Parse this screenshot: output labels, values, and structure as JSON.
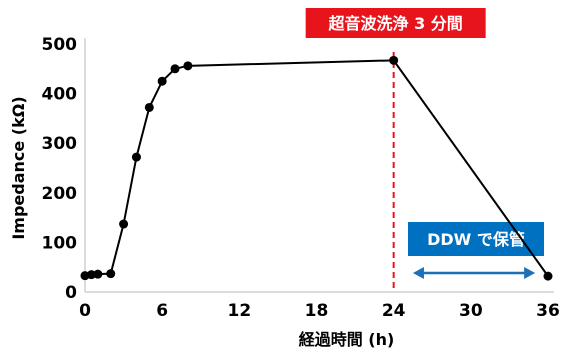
{
  "chart_data": {
    "type": "line",
    "title": "",
    "xlabel": "経過時間 (h)",
    "ylabel": "Impedance (kΩ)",
    "xlim": [
      0,
      36
    ],
    "ylim": [
      0,
      500
    ],
    "x_ticks": [
      0,
      6,
      12,
      18,
      24,
      30,
      36
    ],
    "y_ticks": [
      0,
      100,
      200,
      300,
      400,
      500
    ],
    "grid": false,
    "series": [
      {
        "x": [
          0,
          0.5,
          1,
          2,
          3,
          4,
          5,
          6,
          7,
          8,
          24,
          36
        ],
        "values": [
          33,
          35,
          36,
          37,
          137,
          272,
          372,
          425,
          450,
          456,
          467,
          32
        ],
        "color": "#000000"
      }
    ],
    "annotations": {
      "ultrasonic": {
        "text": "超音波洗浄 3 分間",
        "x": 24,
        "box_color": "#e8141c",
        "line_color": "#e8141c"
      },
      "storage": {
        "text": "DDW で保管",
        "x_range": [
          25.5,
          35
        ],
        "box_color": "#0070c0",
        "arrow_color": "#1f6fb8"
      }
    }
  }
}
